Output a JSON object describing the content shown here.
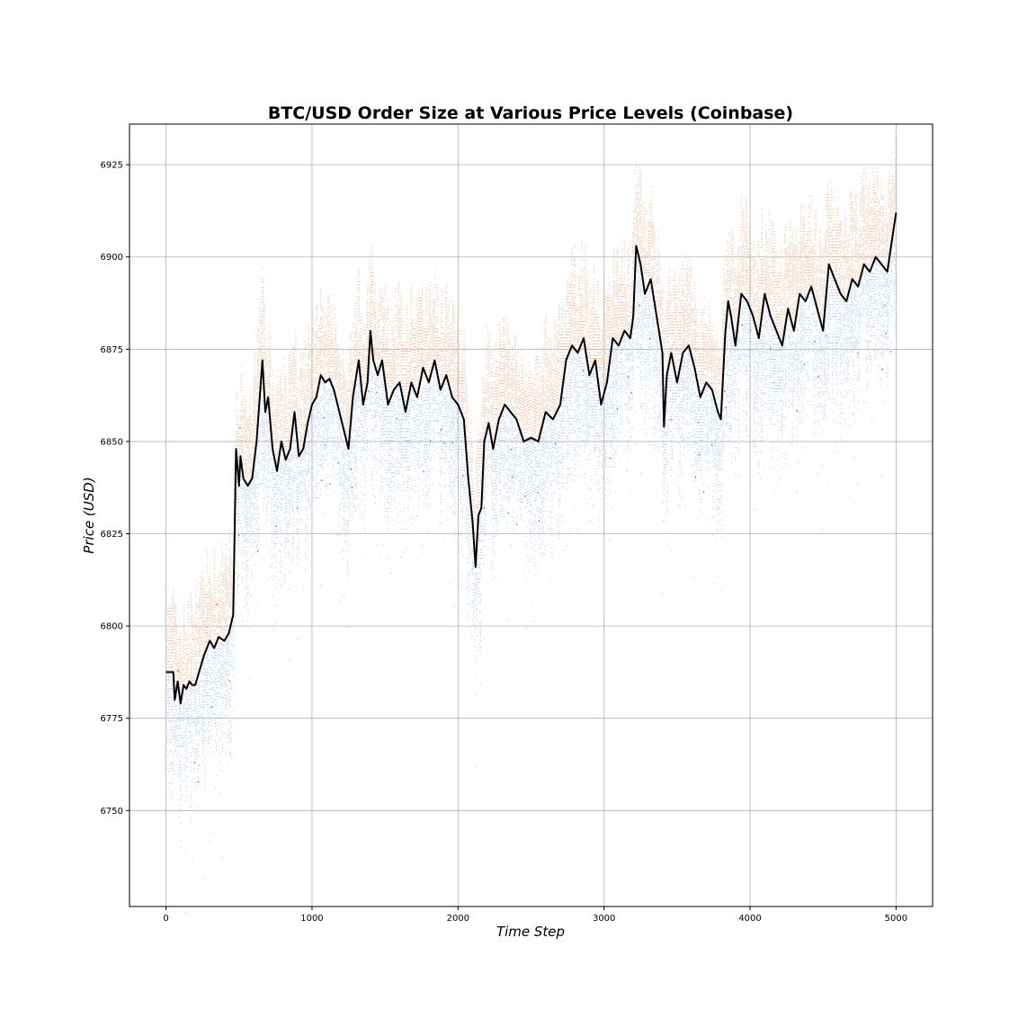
{
  "chart_data": {
    "type": "heatmap",
    "title": "BTC/USD Order Size at Various Price Levels (Coinbase)",
    "xlabel": "Time Step",
    "ylabel": "Price (USD)",
    "xlim": [
      -250,
      5250
    ],
    "ylim": [
      6724,
      6936
    ],
    "x_ticks": [
      0,
      1000,
      2000,
      3000,
      4000,
      5000
    ],
    "y_ticks": [
      6750,
      6775,
      6800,
      6825,
      6850,
      6875,
      6900,
      6925
    ],
    "grid": true,
    "colors": {
      "ask": "#f0b89a",
      "ask_large": "#b40426",
      "bid": "#aec7f5",
      "bid_large": "#3b4cc0",
      "mid_price": "#000000"
    },
    "series": [
      {
        "x": [
          0,
          50,
          60,
          80,
          100,
          120,
          140,
          160,
          180,
          200,
          230,
          260,
          300,
          330,
          360,
          400,
          430,
          460,
          480,
          500,
          510,
          530,
          560,
          590,
          620,
          660,
          680,
          700,
          730,
          760,
          790,
          820,
          850,
          880,
          910,
          940,
          970,
          1000,
          1030,
          1060,
          1090,
          1120,
          1150,
          1200,
          1250,
          1280,
          1320,
          1350,
          1380,
          1400,
          1420,
          1450,
          1480,
          1520,
          1560,
          1600,
          1640,
          1680,
          1720,
          1760,
          1800,
          1840,
          1880,
          1920,
          1960,
          2000,
          2040,
          2070,
          2100,
          2120,
          2140,
          2160,
          2180,
          2210,
          2240,
          2280,
          2320,
          2360,
          2400,
          2450,
          2500,
          2550,
          2600,
          2650,
          2700,
          2740,
          2780,
          2820,
          2860,
          2900,
          2940,
          2980,
          3020,
          3060,
          3100,
          3140,
          3180,
          3200,
          3220,
          3250,
          3280,
          3320,
          3360,
          3400,
          3410,
          3430,
          3460,
          3500,
          3540,
          3580,
          3620,
          3660,
          3700,
          3740,
          3780,
          3800,
          3830,
          3850,
          3870,
          3900,
          3940,
          3980,
          4020,
          4060,
          4100,
          4140,
          4180,
          4220,
          4260,
          4300,
          4340,
          4380,
          4420,
          4460,
          4500,
          4540,
          4580,
          4620,
          4660,
          4700,
          4740,
          4780,
          4820,
          4860,
          4900,
          4940,
          4970,
          5000
        ],
        "y": [
          6787.5,
          6787.5,
          6780,
          6785,
          6779,
          6784,
          6783,
          6785,
          6784,
          6784,
          6788,
          6792,
          6796,
          6794,
          6797,
          6796,
          6798,
          6803,
          6848,
          6838,
          6846,
          6840,
          6838,
          6840,
          6850,
          6872,
          6858,
          6862,
          6848,
          6842,
          6850,
          6845,
          6848,
          6858,
          6846,
          6848,
          6855,
          6860,
          6862,
          6868,
          6866,
          6867,
          6864,
          6856,
          6848,
          6862,
          6872,
          6860,
          6866,
          6880,
          6872,
          6868,
          6872,
          6860,
          6864,
          6866,
          6858,
          6866,
          6862,
          6870,
          6866,
          6872,
          6864,
          6868,
          6862,
          6860,
          6856,
          6840,
          6828,
          6816,
          6830,
          6832,
          6850,
          6855,
          6848,
          6856,
          6860,
          6858,
          6856,
          6850,
          6851,
          6850,
          6858,
          6856,
          6860,
          6872,
          6876,
          6874,
          6878,
          6868,
          6872,
          6860,
          6866,
          6878,
          6876,
          6880,
          6878,
          6884,
          6903,
          6898,
          6890,
          6894,
          6884,
          6874,
          6854,
          6868,
          6874,
          6866,
          6874,
          6876,
          6870,
          6862,
          6866,
          6864,
          6858,
          6856,
          6879,
          6888,
          6884,
          6876,
          6890,
          6888,
          6884,
          6878,
          6890,
          6884,
          6880,
          6876,
          6886,
          6880,
          6890,
          6888,
          6892,
          6886,
          6880,
          6898,
          6894,
          6890,
          6888,
          6894,
          6892,
          6898,
          6896,
          6900,
          6898,
          6896,
          6904,
          6912
        ]
      }
    ]
  }
}
